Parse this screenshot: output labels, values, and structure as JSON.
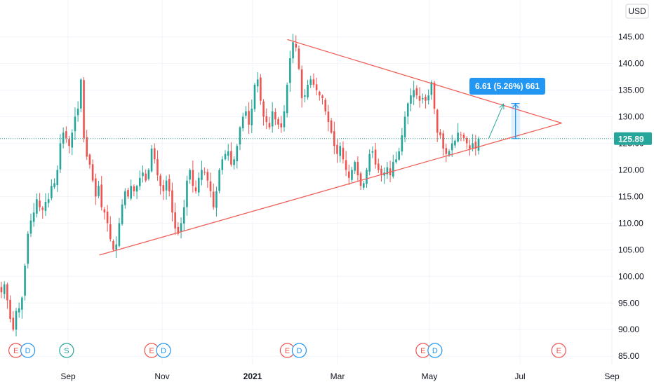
{
  "chart_data": {
    "type": "candlestick",
    "currency": "USD",
    "ylim": [
      83,
      151
    ],
    "y_ticks": [
      "145.00",
      "140.00",
      "135.00",
      "130.00",
      "125.00",
      "120.00",
      "115.00",
      "110.00",
      "105.00",
      "100.00",
      "95.00",
      "90.00",
      "85.00"
    ],
    "x_ticks": [
      "Sep",
      "Nov",
      "2021",
      "Mar",
      "May",
      "Jul",
      "Sep"
    ],
    "last_price": "125.89",
    "last_price_value": 125.89,
    "grid": true,
    "colors": {
      "up": "#26a69a",
      "down": "#ef5350",
      "triangle": "#f0605a",
      "last_line": "#26a69a",
      "measure": "#2196f3",
      "projection": "#26a69a",
      "grid": "#f0f3fa",
      "axis_text": "#131722"
    },
    "closes": [
      97.0,
      98.5,
      95.5,
      92.0,
      90.0,
      93.5,
      94.0,
      96.0,
      102.0,
      108.0,
      110.5,
      112.0,
      114.5,
      113.0,
      112.5,
      114.0,
      114.5,
      117.0,
      117.5,
      120.0,
      125.0,
      127.0,
      126.0,
      124.5,
      127.0,
      130.0,
      131.5,
      137.0,
      126.0,
      122.5,
      121.0,
      118.0,
      115.0,
      117.0,
      113.0,
      112.0,
      110.0,
      107.0,
      105.0,
      106.0,
      110.0,
      113.5,
      116.0,
      115.0,
      117.0,
      116.0,
      117.0,
      118.5,
      119.5,
      118.0,
      120.0,
      124.0,
      122.0,
      119.0,
      117.0,
      116.0,
      118.0,
      116.0,
      112.0,
      109.0,
      108.0,
      110.0,
      113.0,
      118.0,
      120.0,
      117.0,
      116.0,
      118.5,
      120.0,
      119.5,
      118.0,
      116.0,
      113.0,
      116.0,
      120.0,
      122.0,
      123.0,
      123.5,
      121.0,
      122.0,
      124.5,
      128.0,
      130.0,
      131.0,
      128.5,
      131.5,
      136.0,
      137.0,
      133.0,
      130.0,
      129.0,
      128.0,
      131.0,
      129.5,
      128.5,
      128.0,
      131.0,
      136.0,
      141.0,
      144.0,
      143.0,
      139.0,
      133.5,
      134.0,
      136.0,
      137.0,
      136.0,
      135.0,
      134.0,
      133.5,
      131.0,
      129.0,
      127.0,
      124.5,
      123.0,
      124.5,
      122.0,
      120.0,
      118.5,
      120.0,
      121.5,
      119.0,
      117.0,
      117.5,
      120.0,
      123.0,
      123.5,
      121.0,
      120.0,
      119.0,
      119.5,
      120.5,
      119.0,
      121.5,
      122.0,
      123.5,
      126.5,
      130.0,
      132.5,
      134.0,
      135.0,
      134.0,
      133.0,
      133.5,
      133.0,
      134.0,
      136.5,
      131.5,
      127.0,
      126.5,
      124.0,
      123.0,
      123.5,
      125.0,
      125.5,
      127.0,
      126.5,
      126.0,
      125.0,
      124.0,
      125.0,
      124.0,
      125.89
    ],
    "pattern": {
      "type": "symmetrical-triangle",
      "upper": [
        {
          "date": "2021-01-26",
          "price": 144.5
        },
        {
          "date": "2021-07-29",
          "price": 128.8
        }
      ],
      "lower": [
        {
          "date": "2020-09-22",
          "price": 104.0
        },
        {
          "date": "2021-07-29",
          "price": 128.8
        }
      ]
    },
    "measure": {
      "label": "6.61 (5.26%) 661",
      "start": {
        "date": "2021-06-28",
        "price": 125.89
      },
      "end": {
        "date": "2021-06-28",
        "price": 132.5
      }
    },
    "projection": {
      "from": {
        "date": "2021-06-10",
        "price": 125.89
      },
      "to": {
        "date": "2021-06-20",
        "price": 132.4
      }
    },
    "events": [
      {
        "label": "E",
        "kind": "earnings",
        "date": "2020-07-28"
      },
      {
        "label": "D",
        "kind": "dividend",
        "date": "2020-08-05"
      },
      {
        "label": "S",
        "kind": "split",
        "date": "2020-08-31"
      },
      {
        "label": "E",
        "kind": "earnings",
        "date": "2020-10-27"
      },
      {
        "label": "D",
        "kind": "dividend",
        "date": "2020-11-04"
      },
      {
        "label": "E",
        "kind": "earnings",
        "date": "2021-01-26"
      },
      {
        "label": "D",
        "kind": "dividend",
        "date": "2021-02-03"
      },
      {
        "label": "E",
        "kind": "earnings",
        "date": "2021-04-27"
      },
      {
        "label": "D",
        "kind": "dividend",
        "date": "2021-05-05"
      },
      {
        "label": "E",
        "kind": "earnings",
        "date": "2021-07-27"
      }
    ]
  }
}
